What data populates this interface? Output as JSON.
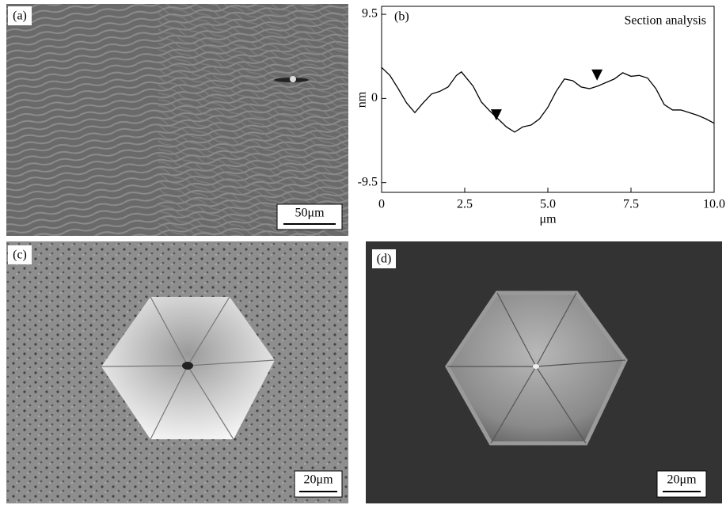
{
  "panels": [
    {
      "label": "(a)",
      "scale_bar": "50μm"
    },
    {
      "label": "(c)",
      "scale_bar": "20μm"
    },
    {
      "label": "(d)",
      "scale_bar": "20μm"
    }
  ],
  "chart_data": {
    "type": "line",
    "panel_label": "(b)",
    "annotation": "Section analysis",
    "x_label": "μm",
    "y_label": "nm",
    "color": "#000000",
    "x": [
      0,
      0.25,
      0.5,
      0.75,
      1.0,
      1.25,
      1.5,
      1.75,
      2.0,
      2.25,
      2.4,
      2.75,
      3.0,
      3.25,
      3.5,
      3.75,
      4.0,
      4.25,
      4.5,
      4.75,
      5.0,
      5.25,
      5.5,
      5.75,
      6.0,
      6.25,
      6.5,
      6.75,
      7.0,
      7.25,
      7.5,
      7.75,
      8.0,
      8.25,
      8.5,
      8.75,
      9.0,
      9.25,
      9.5,
      9.75,
      10.0
    ],
    "values": [
      3.5,
      2.6,
      1.1,
      -0.5,
      -1.6,
      -0.5,
      0.5,
      0.8,
      1.3,
      2.6,
      3.0,
      1.4,
      -0.4,
      -1.4,
      -2.3,
      -3.2,
      -3.8,
      -3.2,
      -3.0,
      -2.3,
      -1.0,
      0.8,
      2.2,
      2.0,
      1.3,
      1.1,
      1.4,
      1.8,
      2.2,
      2.9,
      2.5,
      2.6,
      2.3,
      1.1,
      -0.7,
      -1.3,
      -1.3,
      -1.6,
      -1.9,
      -2.3,
      -2.8
    ],
    "markers": {
      "x": [
        3.45,
        6.48
      ],
      "values": [
        -2.3,
        2.2
      ]
    },
    "xlim": [
      0,
      10
    ],
    "ylim": [
      -10.6,
      10.4
    ],
    "xticks": [
      0,
      2.5,
      {
        "value": 5,
        "label": "5.0"
      },
      7.5,
      {
        "value": 10,
        "label": "10.0"
      }
    ],
    "yticks": [
      9.5,
      0,
      -9.5
    ]
  }
}
